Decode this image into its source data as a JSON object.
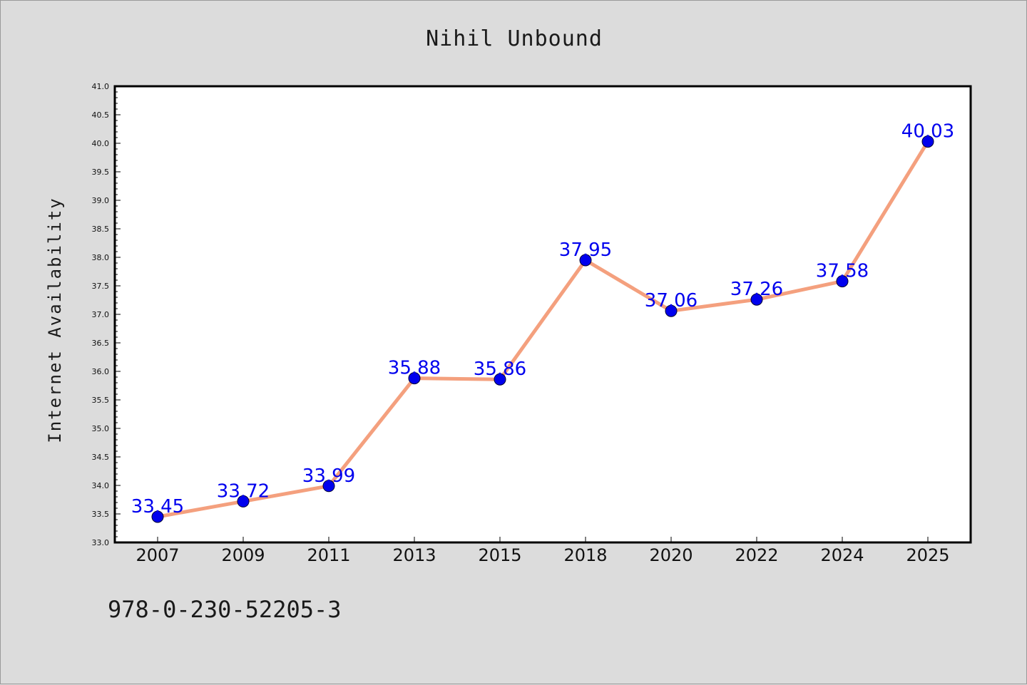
{
  "colors": {
    "background": "#dcdcdc",
    "plot_background": "#ffffff",
    "line": "#f4a07e",
    "marker": "#0000ee",
    "data_label": "#0000ee",
    "axis": "#000000"
  },
  "footer_text": "978-0-230-52205-3",
  "chart_data": {
    "type": "line",
    "title": "Nihil Unbound",
    "xlabel": "",
    "ylabel": "Internet Availability",
    "categories": [
      "2007",
      "2009",
      "2011",
      "2013",
      "2015",
      "2018",
      "2020",
      "2022",
      "2024",
      "2025"
    ],
    "series": [
      {
        "values": [
          33.45,
          33.72,
          33.99,
          35.88,
          35.86,
          37.95,
          37.06,
          37.26,
          37.58,
          40.03
        ],
        "labels": [
          "33.45",
          "33.72",
          "33.99",
          "35.88",
          "35.86",
          "37.95",
          "37.06",
          "37.26",
          "37.58",
          "40.03"
        ]
      }
    ],
    "ylim": [
      33.0,
      41.0
    ],
    "yticks": [
      "33.0",
      "33.5",
      "34.0",
      "34.5",
      "35.0",
      "35.5",
      "36.0",
      "36.5",
      "37.0",
      "37.5",
      "38.0",
      "38.5",
      "39.0",
      "39.5",
      "40.0",
      "40.5",
      "41.0"
    ],
    "grid": false,
    "legend": "none"
  }
}
